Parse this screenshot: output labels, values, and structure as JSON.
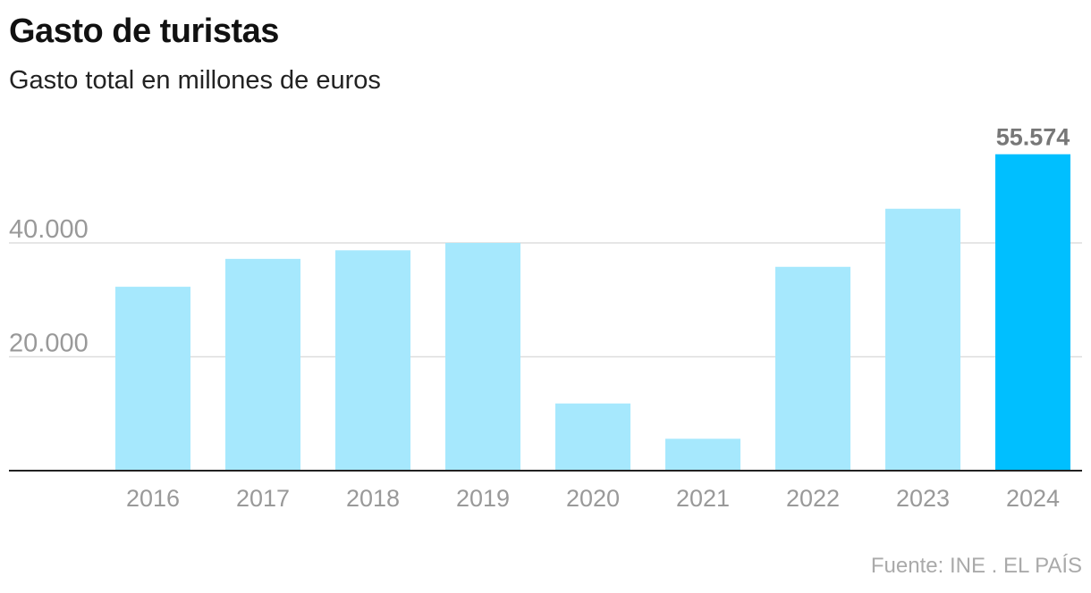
{
  "header": {
    "title": "Gasto de turistas",
    "subtitle": "Gasto total en millones de euros"
  },
  "source": "Fuente: INE . EL PAÍS",
  "colors": {
    "bar": "#a6e8fd",
    "highlight": "#00bfff",
    "grid": "#dddddd",
    "axis": "#222222",
    "tick_text": "#999999",
    "label_text": "#777777"
  },
  "chart_data": {
    "type": "bar",
    "title": "Gasto de turistas",
    "subtitle": "Gasto total en millones de euros",
    "xlabel": "",
    "ylabel": "",
    "categories": [
      "2016",
      "2017",
      "2018",
      "2019",
      "2020",
      "2021",
      "2022",
      "2023",
      "2024"
    ],
    "values": [
      32300,
      37200,
      38700,
      40000,
      11800,
      5600,
      35800,
      46000,
      55574
    ],
    "highlight_index": 8,
    "data_labels": [
      {
        "index": 8,
        "text": "55.574"
      }
    ],
    "ylim": [
      0,
      60000
    ],
    "yticks": [
      {
        "value": 20000,
        "label": "20.000"
      },
      {
        "value": 40000,
        "label": "40.000"
      }
    ],
    "grid": true,
    "legend": "none"
  }
}
